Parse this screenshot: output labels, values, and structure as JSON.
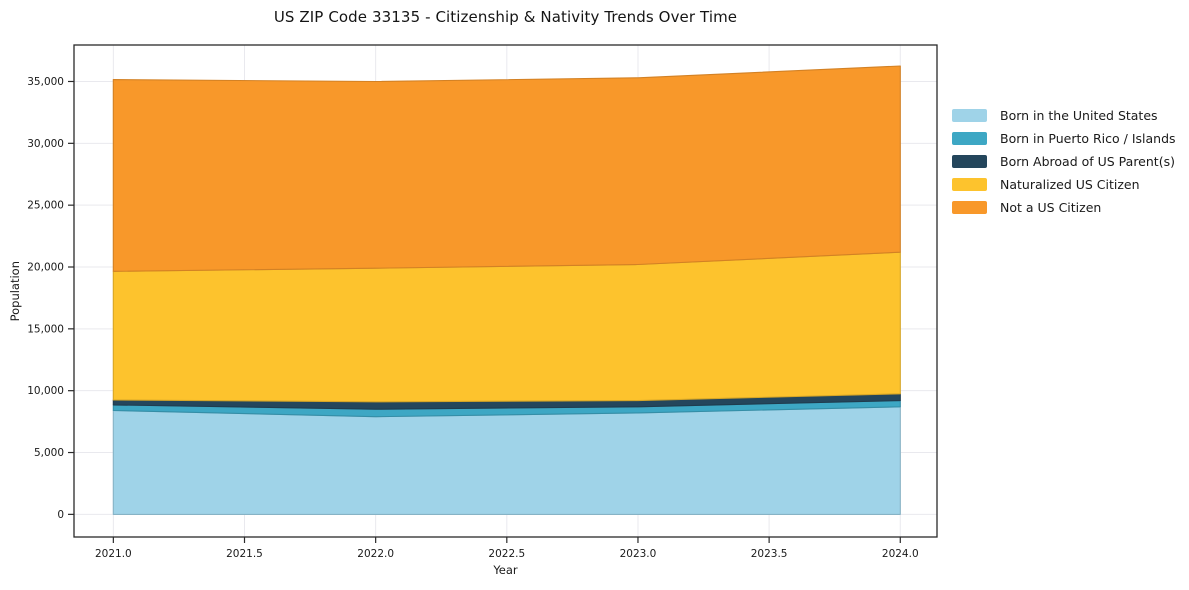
{
  "chart_data": {
    "type": "area",
    "stacked": true,
    "title": "US ZIP Code 33135 - Citizenship & Nativity Trends Over Time",
    "xlabel": "Year",
    "ylabel": "Population",
    "x": [
      2021.0,
      2022.0,
      2023.0,
      2024.0
    ],
    "xlim": [
      2020.85,
      2024.14
    ],
    "ylim": [
      -1830,
      37950
    ],
    "xticks": [
      2021.0,
      2021.5,
      2022.0,
      2022.5,
      2023.0,
      2023.5,
      2024.0
    ],
    "xtick_labels": [
      "2021.0",
      "2021.5",
      "2022.0",
      "2022.5",
      "2023.0",
      "2023.5",
      "2024.0"
    ],
    "yticks": [
      0,
      5000,
      10000,
      15000,
      20000,
      25000,
      30000,
      35000
    ],
    "ytick_labels": [
      "0",
      "5,000",
      "10,000",
      "15,000",
      "20,000",
      "25,000",
      "30,000",
      "35,000"
    ],
    "grid": true,
    "legend_position": "right-outside",
    "series": [
      {
        "name": "Born in the United States",
        "color": "#9fd3e8",
        "values": [
          8400,
          7900,
          8200,
          8700
        ]
      },
      {
        "name": "Born in Puerto Rico / Islands",
        "color": "#3da7c4",
        "values": [
          450,
          600,
          500,
          500
        ]
      },
      {
        "name": "Born Abroad of US Parent(s)",
        "color": "#24465c",
        "values": [
          400,
          600,
          500,
          550
        ]
      },
      {
        "name": "Naturalized US Citizen",
        "color": "#fdc32d",
        "values": [
          10400,
          10800,
          11000,
          11450
        ]
      },
      {
        "name": "Not a US Citizen",
        "color": "#f8982a",
        "values": [
          15500,
          15100,
          15100,
          15050
        ]
      }
    ],
    "stacked_totals": [
      35150,
      35000,
      35300,
      36250
    ]
  },
  "colors": {
    "plot_border": "#2a2a2a",
    "gridline": "#e9e9ee",
    "tick_label": "#1a1a1a",
    "title": "#151515",
    "background": "#ffffff"
  }
}
